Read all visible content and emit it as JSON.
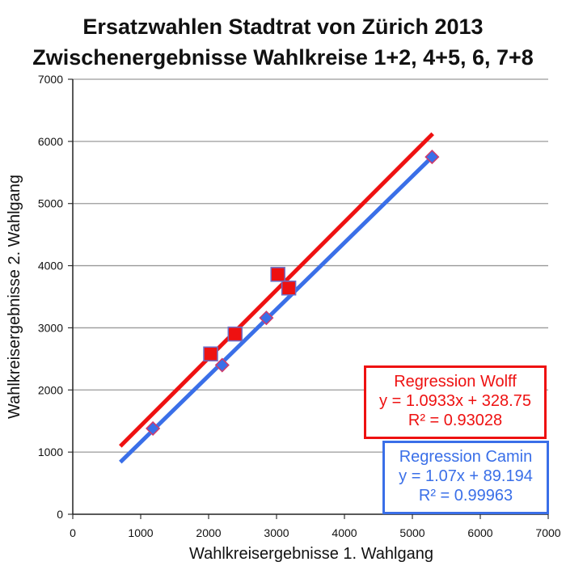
{
  "title_line1": "Ersatzwahlen Stadtrat von Zürich 2013",
  "title_line2": "Zwischenergebnisse Wahlkreise 1+2, 4+5, 6, 7+8",
  "chart_data": {
    "type": "scatter",
    "xlabel": "Wahlkreisergebnisse 1. Wahlgang",
    "ylabel": "Wahlkreisergebnisse 2. Wahlgang",
    "xlim": [
      0,
      7000
    ],
    "ylim": [
      0,
      7000
    ],
    "x_ticks": [
      "0",
      "1000",
      "2000",
      "3000",
      "4000",
      "5000",
      "6000",
      "7000"
    ],
    "y_ticks": [
      "0",
      "1000",
      "2000",
      "3000",
      "4000",
      "5000",
      "6000",
      "7000"
    ],
    "grid": "horizontal",
    "series": [
      {
        "marker": "square",
        "color": "#ee1111",
        "points": [
          [
            2030,
            2580
          ],
          [
            2390,
            2900
          ],
          [
            3020,
            3860
          ],
          [
            3180,
            3640
          ]
        ],
        "trendline": {
          "slope": 1.0933,
          "intercept": 328.75,
          "x_range": [
            700,
            5300
          ]
        },
        "annotation": {
          "line1": "Regression Wolff",
          "line2": "y = 1.0933x + 328.75",
          "line3": "R² = 0.93028"
        }
      },
      {
        "marker": "diamond",
        "color": "#3a6fe8",
        "points": [
          [
            1180,
            1380
          ],
          [
            2200,
            2400
          ],
          [
            2850,
            3160
          ],
          [
            5290,
            5750
          ]
        ],
        "trendline": {
          "slope": 1.07,
          "intercept": 89.194,
          "x_range": [
            700,
            5300
          ]
        },
        "annotation": {
          "line1": "Regression Camin",
          "line2": "y = 1.07x + 89.194",
          "line3": "R² = 0.99963"
        }
      }
    ]
  }
}
